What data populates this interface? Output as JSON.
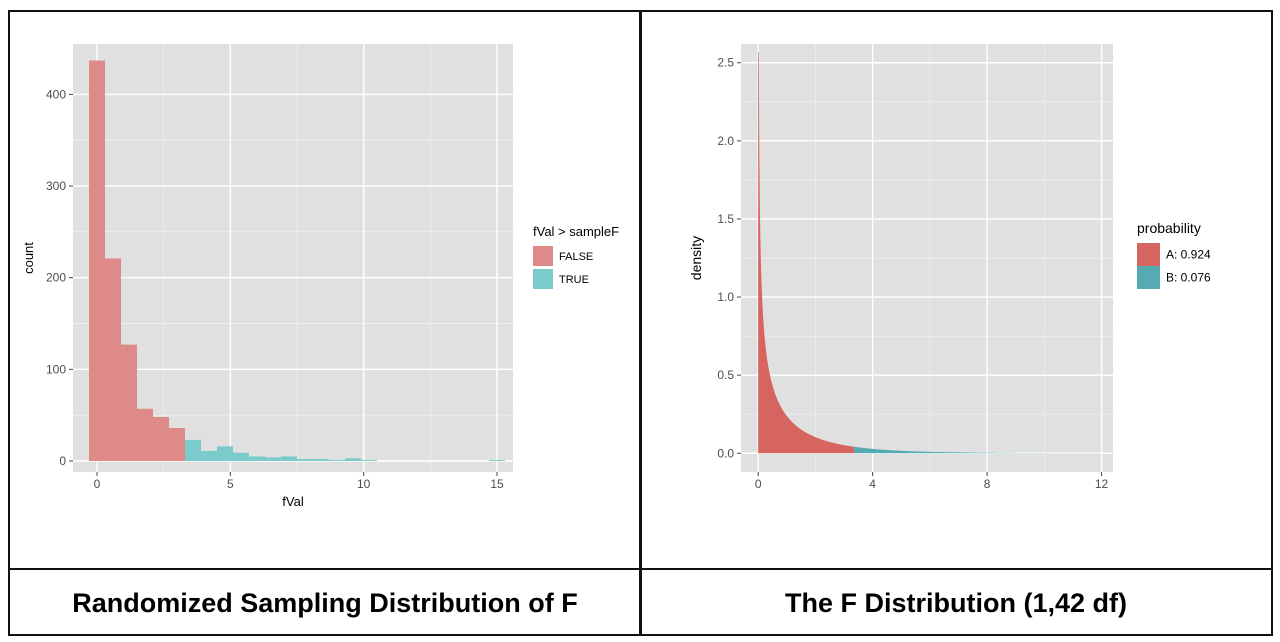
{
  "captions": {
    "left": "Randomized Sampling Distribution of F",
    "right": "The F Distribution (1,42 df)"
  },
  "chart_data": [
    {
      "type": "bar",
      "subtype": "histogram",
      "title": "",
      "xlabel": "fVal",
      "ylabel": "count",
      "xlim": [
        -0.9,
        15.6
      ],
      "ylim": [
        -12,
        455
      ],
      "x_ticks": [
        0,
        5,
        10,
        15
      ],
      "y_ticks": [
        0,
        100,
        200,
        300,
        400
      ],
      "grid": true,
      "background": "#e0e0e0",
      "legend": {
        "title": "fVal > sampleF",
        "position": "right",
        "entries": [
          {
            "label": "FALSE",
            "color": "#dd8a88"
          },
          {
            "label": "TRUE",
            "color": "#7ccbcc"
          }
        ]
      },
      "bin_width": 0.6,
      "series": [
        {
          "name": "FALSE",
          "color": "#dd8a88",
          "bin_centers": [
            0.0,
            0.6,
            1.2,
            1.8,
            2.4,
            3.0
          ],
          "values": [
            437,
            221,
            127,
            57,
            48,
            36
          ]
        },
        {
          "name": "TRUE",
          "color": "#7ccbcc",
          "bin_centers": [
            3.6,
            4.2,
            4.8,
            5.4,
            6.0,
            6.6,
            7.2,
            7.8,
            8.4,
            9.0,
            9.6,
            10.2,
            10.8,
            11.4,
            12.0,
            12.6,
            13.2,
            13.8,
            14.4,
            15.0
          ],
          "values": [
            23,
            11,
            16,
            9,
            5,
            4,
            5,
            2,
            2,
            1,
            3,
            1,
            0,
            0,
            0,
            0,
            0,
            0,
            0,
            1
          ]
        }
      ]
    },
    {
      "type": "area",
      "title": "",
      "xlabel": "",
      "ylabel": "density",
      "xlim": [
        -0.6,
        12.4
      ],
      "ylim": [
        -0.12,
        2.62
      ],
      "x_ticks": [
        0,
        4,
        8,
        12
      ],
      "y_ticks": [
        0.0,
        0.5,
        1.0,
        1.5,
        2.0,
        2.5
      ],
      "grid": true,
      "background": "#e0e0e0",
      "distribution": {
        "family": "F",
        "df1": 1,
        "df2": 42
      },
      "critical_value": 3.35,
      "x_max_plotted": 12,
      "legend": {
        "title": "probability",
        "position": "right",
        "entries": [
          {
            "label": "A: 0.924",
            "color": "#d6655f"
          },
          {
            "label": "B: 0.076",
            "color": "#56abb2"
          }
        ]
      },
      "series": [
        {
          "name": "A: 0.924",
          "x_range": [
            0,
            3.35
          ],
          "color": "#d6655f"
        },
        {
          "name": "B: 0.076",
          "x_range": [
            3.35,
            12
          ],
          "color": "#56abb2"
        }
      ]
    }
  ]
}
